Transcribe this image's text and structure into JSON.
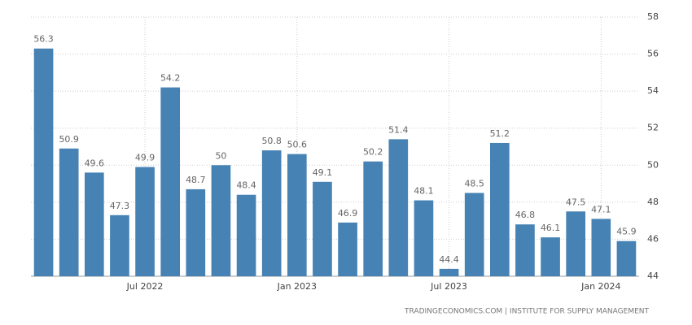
{
  "chart_data": {
    "type": "bar",
    "source": "TRADINGECONOMICS.COM  |  INSTITUTE FOR SUPPLY MANAGEMENT",
    "categories": [
      null,
      null,
      null,
      null,
      "Jul 2022",
      null,
      null,
      null,
      null,
      null,
      "Jan 2023",
      null,
      null,
      null,
      null,
      null,
      "Jul 2023",
      null,
      null,
      null,
      null,
      null,
      "Jan 2024",
      null
    ],
    "values": [
      56.3,
      50.9,
      49.6,
      47.3,
      49.9,
      54.2,
      48.7,
      50,
      48.4,
      50.8,
      50.6,
      49.1,
      46.9,
      50.2,
      51.4,
      48.1,
      44.4,
      48.5,
      51.2,
      46.8,
      46.1,
      47.5,
      47.1,
      45.9
    ],
    "color": "#4682b4",
    "ylim": [
      44,
      58
    ],
    "yticks": [
      44,
      46,
      48,
      50,
      52,
      54,
      56,
      58
    ],
    "grid": true,
    "y_axis_side": "right"
  }
}
